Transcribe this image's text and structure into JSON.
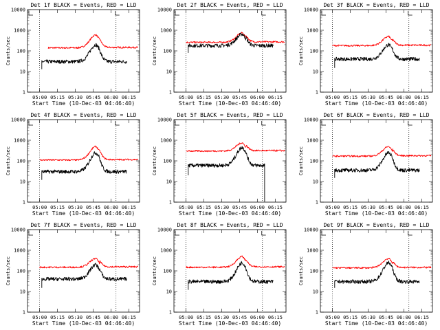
{
  "chart_data": [
    {
      "type": "line",
      "panel": "Det 1f",
      "title": "Det 1f BLACK = Events, RED = LLD",
      "xlabel": "Start Time (10-Dec-03 04:46:40)",
      "ylabel": "Counts/sec",
      "x_tick_labels": [
        "05:00",
        "05:15",
        "05:30",
        "05:45",
        "06:00",
        "06:15"
      ],
      "y_tick_labels": [
        "1",
        "10",
        "100",
        "1000",
        "10000"
      ],
      "ylim": [
        1,
        10000
      ],
      "scale": "log",
      "series": [
        {
          "name": "LLD",
          "color": "#ff0000",
          "start": 5.12,
          "end": 6.38,
          "base": 140,
          "peak": 600,
          "min": 105
        },
        {
          "name": "Events",
          "color": "#000000",
          "start": 5.03,
          "end": 6.22,
          "base": 30,
          "peak": 200,
          "min": 13
        }
      ]
    },
    {
      "type": "line",
      "panel": "Det 2f",
      "title": "Det 2f BLACK = Events, RED = LLD",
      "xlabel": "Start Time (10-Dec-03 04:46:40)",
      "ylabel": "Counts/sec",
      "x_tick_labels": [
        "05:00",
        "05:15",
        "05:30",
        "05:45",
        "06:00",
        "06:15"
      ],
      "y_tick_labels": [
        "1",
        "10",
        "100",
        "1000",
        "10000"
      ],
      "ylim": [
        1,
        10000
      ],
      "scale": "log",
      "series": [
        {
          "name": "LLD",
          "color": "#ff0000",
          "start": 5.0,
          "end": 6.38,
          "base": 260,
          "peak": 750,
          "min": 250
        },
        {
          "name": "Events",
          "color": "#000000",
          "start": 5.03,
          "end": 6.22,
          "base": 180,
          "peak": 650,
          "min": 80
        }
      ]
    },
    {
      "type": "line",
      "panel": "Det 3f",
      "title": "Det 3f BLACK = Events, RED = LLD",
      "xlabel": "Start Time (10-Dec-03 04:46:40)",
      "ylabel": "Counts/sec",
      "x_tick_labels": [
        "05:00",
        "05:15",
        "05:30",
        "05:45",
        "06:00",
        "06:15"
      ],
      "y_tick_labels": [
        "1",
        "10",
        "100",
        "1000",
        "10000"
      ],
      "ylim": [
        1,
        10000
      ],
      "scale": "log",
      "series": [
        {
          "name": "LLD",
          "color": "#ff0000",
          "start": 5.0,
          "end": 6.38,
          "base": 180,
          "peak": 500,
          "min": 140
        },
        {
          "name": "Events",
          "color": "#000000",
          "start": 5.03,
          "end": 6.22,
          "base": 40,
          "peak": 200,
          "min": 15
        }
      ]
    },
    {
      "type": "line",
      "panel": "Det 4f",
      "title": "Det 4f BLACK = Events, RED = LLD",
      "xlabel": "Start Time (10-Dec-03 04:46:40)",
      "ylabel": "Counts/sec",
      "x_tick_labels": [
        "05:00",
        "05:15",
        "05:30",
        "05:45",
        "06:00",
        "06:15"
      ],
      "y_tick_labels": [
        "1",
        "10",
        "100",
        "1000",
        "10000"
      ],
      "ylim": [
        1,
        10000
      ],
      "scale": "log",
      "series": [
        {
          "name": "LLD",
          "color": "#ff0000",
          "start": 5.0,
          "end": 6.38,
          "base": 110,
          "peak": 500,
          "min": 90
        },
        {
          "name": "Events",
          "color": "#000000",
          "start": 5.03,
          "end": 6.22,
          "base": 30,
          "peak": 250,
          "min": 12
        }
      ]
    },
    {
      "type": "line",
      "panel": "Det 5f",
      "title": "Det 5f BLACK = Events, RED = LLD",
      "xlabel": "Start Time (10-Dec-03 04:46:40)",
      "ylabel": "Counts/sec",
      "x_tick_labels": [
        "05:00",
        "05:15",
        "05:30",
        "05:45",
        "06:00",
        "06:15"
      ],
      "y_tick_labels": [
        "1",
        "10",
        "100",
        "1000",
        "10000"
      ],
      "ylim": [
        1,
        10000
      ],
      "scale": "log",
      "series": [
        {
          "name": "LLD",
          "color": "#ff0000",
          "start": 5.0,
          "end": 6.38,
          "base": 300,
          "peak": 750,
          "min": 280
        },
        {
          "name": "Events",
          "color": "#000000",
          "start": 5.03,
          "end": 6.1,
          "base": 60,
          "peak": 450,
          "min": 20
        }
      ]
    },
    {
      "type": "line",
      "panel": "Det 6f",
      "title": "Det 6f BLACK = Events, RED = LLD",
      "xlabel": "Start Time (10-Dec-03 04:46:40)",
      "ylabel": "Counts/sec",
      "x_tick_labels": [
        "05:00",
        "05:15",
        "05:30",
        "05:45",
        "06:00",
        "06:15"
      ],
      "y_tick_labels": [
        "1",
        "10",
        "100",
        "1000",
        "10000"
      ],
      "ylim": [
        1,
        10000
      ],
      "scale": "log",
      "series": [
        {
          "name": "LLD",
          "color": "#ff0000",
          "start": 5.0,
          "end": 6.38,
          "base": 170,
          "peak": 500,
          "min": 130
        },
        {
          "name": "Events",
          "color": "#000000",
          "start": 5.03,
          "end": 6.22,
          "base": 35,
          "peak": 250,
          "min": 15
        }
      ]
    },
    {
      "type": "line",
      "panel": "Det 7f",
      "title": "Det 7f BLACK = Events, RED = LLD",
      "xlabel": "Start Time (10-Dec-03 04:46:40)",
      "ylabel": "Counts/sec",
      "x_tick_labels": [
        "05:00",
        "05:15",
        "05:30",
        "05:45",
        "06:00",
        "06:15"
      ],
      "y_tick_labels": [
        "1",
        "10",
        "100",
        "1000",
        "10000"
      ],
      "ylim": [
        1,
        10000
      ],
      "scale": "log",
      "series": [
        {
          "name": "LLD",
          "color": "#ff0000",
          "start": 5.0,
          "end": 6.38,
          "base": 150,
          "peak": 400,
          "min": 100
        },
        {
          "name": "Events",
          "color": "#000000",
          "start": 5.03,
          "end": 6.22,
          "base": 40,
          "peak": 200,
          "min": 15
        }
      ]
    },
    {
      "type": "line",
      "panel": "Det 8f",
      "title": "Det 8f BLACK = Events, RED = LLD",
      "xlabel": "Start Time (10-Dec-03 04:46:40)",
      "ylabel": "Counts/sec",
      "x_tick_labels": [
        "05:00",
        "05:15",
        "05:30",
        "05:45",
        "06:00",
        "06:15"
      ],
      "y_tick_labels": [
        "1",
        "10",
        "100",
        "1000",
        "10000"
      ],
      "ylim": [
        1,
        10000
      ],
      "scale": "log",
      "series": [
        {
          "name": "LLD",
          "color": "#ff0000",
          "start": 5.0,
          "end": 6.38,
          "base": 150,
          "peak": 500,
          "min": 130
        },
        {
          "name": "Events",
          "color": "#000000",
          "start": 5.03,
          "end": 6.22,
          "base": 30,
          "peak": 250,
          "min": 12
        }
      ]
    },
    {
      "type": "line",
      "panel": "Det 9f",
      "title": "Det 9f BLACK = Events, RED = LLD",
      "xlabel": "Start Time (10-Dec-03 04:46:40)",
      "ylabel": "Counts/sec",
      "x_tick_labels": [
        "05:00",
        "05:15",
        "05:30",
        "05:45",
        "06:00",
        "06:15"
      ],
      "y_tick_labels": [
        "1",
        "10",
        "100",
        "1000",
        "10000"
      ],
      "ylim": [
        1,
        10000
      ],
      "scale": "log",
      "series": [
        {
          "name": "LLD",
          "color": "#ff0000",
          "start": 5.0,
          "end": 6.38,
          "base": 140,
          "peak": 400,
          "min": 130
        },
        {
          "name": "Events",
          "color": "#000000",
          "start": 5.03,
          "end": 6.22,
          "base": 30,
          "peak": 250,
          "min": 15
        }
      ]
    }
  ]
}
